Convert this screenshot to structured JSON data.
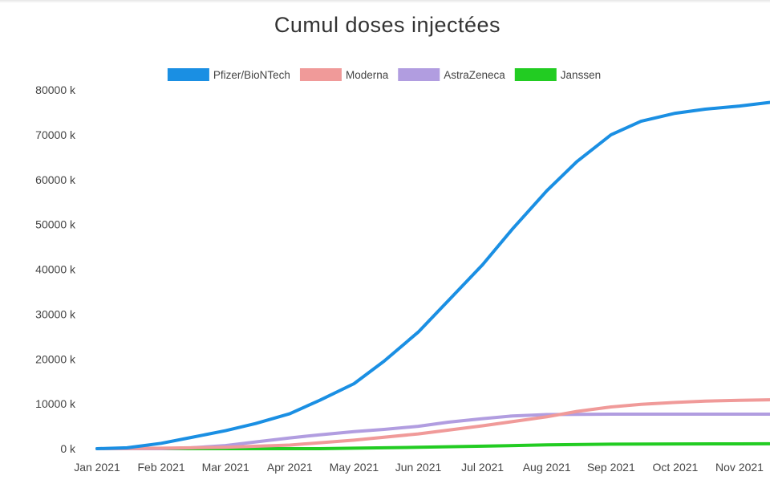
{
  "chart_data": {
    "type": "line",
    "title": "Cumul doses injectées",
    "xlabel": "",
    "ylabel": "",
    "x_ticks": [
      "Jan 2021",
      "Feb 2021",
      "Mar 2021",
      "Apr 2021",
      "May 2021",
      "Jun 2021",
      "Jul 2021",
      "Aug 2021",
      "Sep 2021",
      "Oct 2021",
      "Nov 2021"
    ],
    "y_ticks": [
      "0 k",
      "10000 k",
      "20000 k",
      "30000 k",
      "40000 k",
      "50000 k",
      "60000 k",
      "70000 k",
      "80000 k"
    ],
    "ylim": [
      0,
      80000
    ],
    "y_unit": "k doses",
    "legend_position": "top-center",
    "grid": false,
    "series": [
      {
        "name": "Pfizer/BioNTech",
        "color": "#1a8fe3",
        "points": [
          [
            "Jan 2021",
            0
          ],
          [
            "Jan 15 2021",
            200
          ],
          [
            "Feb 2021",
            1200
          ],
          [
            "Feb 15 2021",
            2500
          ],
          [
            "Mar 2021",
            4000
          ],
          [
            "Mar 15 2021",
            5600
          ],
          [
            "Apr 2021",
            7800
          ],
          [
            "Apr 15 2021",
            10800
          ],
          [
            "May 2021",
            14500
          ],
          [
            "May 15 2021",
            19500
          ],
          [
            "Jun 2021",
            26000
          ],
          [
            "Jun 15 2021",
            33000
          ],
          [
            "Jul 2021",
            41000
          ],
          [
            "Jul 15 2021",
            49000
          ],
          [
            "Aug 2021",
            57500
          ],
          [
            "Aug 15 2021",
            64000
          ],
          [
            "Sep 2021",
            70000
          ],
          [
            "Sep 15 2021",
            73000
          ],
          [
            "Oct 2021",
            74800
          ],
          [
            "Oct 15 2021",
            75700
          ],
          [
            "Nov 2021",
            76400
          ],
          [
            "Nov 15 2021",
            77200
          ]
        ]
      },
      {
        "name": "Moderna",
        "color": "#f09a99",
        "points": [
          [
            "Jan 2021",
            0
          ],
          [
            "Feb 2021",
            100
          ],
          [
            "Mar 2021",
            300
          ],
          [
            "Apr 2021",
            800
          ],
          [
            "May 2021",
            1900
          ],
          [
            "Jun 2021",
            3300
          ],
          [
            "Jul 2021",
            5100
          ],
          [
            "Aug 2021",
            7100
          ],
          [
            "Aug 15 2021",
            8300
          ],
          [
            "Sep 2021",
            9300
          ],
          [
            "Sep 15 2021",
            9900
          ],
          [
            "Oct 2021",
            10300
          ],
          [
            "Oct 15 2021",
            10600
          ],
          [
            "Nov 2021",
            10800
          ],
          [
            "Nov 15 2021",
            10900
          ]
        ]
      },
      {
        "name": "AstraZeneca",
        "color": "#b19de0",
        "points": [
          [
            "Jan 2021",
            0
          ],
          [
            "Feb 2021",
            0
          ],
          [
            "Feb 15 2021",
            200
          ],
          [
            "Mar 2021",
            700
          ],
          [
            "Mar 15 2021",
            1500
          ],
          [
            "Apr 2021",
            2400
          ],
          [
            "Apr 15 2021",
            3100
          ],
          [
            "May 2021",
            3800
          ],
          [
            "May 15 2021",
            4300
          ],
          [
            "Jun 2021",
            5000
          ],
          [
            "Jun 15 2021",
            5900
          ],
          [
            "Jul 2021",
            6700
          ],
          [
            "Jul 15 2021",
            7300
          ],
          [
            "Aug 2021",
            7600
          ],
          [
            "Sep 2021",
            7700
          ],
          [
            "Oct 2021",
            7700
          ],
          [
            "Nov 2021",
            7700
          ],
          [
            "Nov 15 2021",
            7700
          ]
        ]
      },
      {
        "name": "Janssen",
        "color": "#22cc22",
        "points": [
          [
            "Jan 2021",
            0
          ],
          [
            "Apr 15 2021",
            0
          ],
          [
            "May 2021",
            100
          ],
          [
            "Jun 2021",
            300
          ],
          [
            "Jul 2021",
            550
          ],
          [
            "Aug 2021",
            850
          ],
          [
            "Sep 2021",
            1000
          ],
          [
            "Oct 2021",
            1050
          ],
          [
            "Nov 2021",
            1080
          ],
          [
            "Nov 15 2021",
            1090
          ]
        ]
      }
    ]
  }
}
